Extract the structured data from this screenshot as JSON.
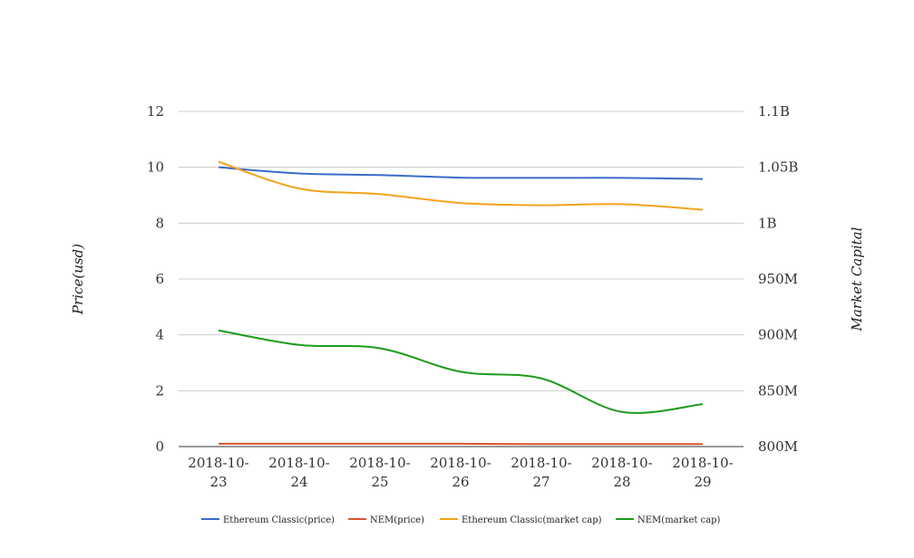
{
  "chart_data": {
    "type": "line",
    "categories": [
      "2018-10-23",
      "2018-10-24",
      "2018-10-25",
      "2018-10-26",
      "2018-10-27",
      "2018-10-28",
      "2018-10-29"
    ],
    "x_tick_lines": [
      [
        "2018-10-",
        "23"
      ],
      [
        "2018-10-",
        "24"
      ],
      [
        "2018-10-",
        "25"
      ],
      [
        "2018-10-",
        "26"
      ],
      [
        "2018-10-",
        "27"
      ],
      [
        "2018-10-",
        "28"
      ],
      [
        "2018-10-",
        "29"
      ]
    ],
    "ylabel": "Price(usd)",
    "y2label": "Market Capital",
    "ylim": [
      0,
      12
    ],
    "y2lim": [
      800000000,
      1100000000
    ],
    "yticks": [
      0,
      2,
      4,
      6,
      8,
      10,
      12
    ],
    "yticklabels": [
      "0",
      "2",
      "4",
      "6",
      "8",
      "10",
      "12"
    ],
    "y2ticks": [
      800000000,
      850000000,
      900000000,
      950000000,
      1000000000,
      1050000000,
      1100000000
    ],
    "y2ticklabels": [
      "800M",
      "850M",
      "900M",
      "950M",
      "1B",
      "1.05B",
      "1.1B"
    ],
    "grid": true,
    "legend_position": "bottom",
    "series": [
      {
        "name": "Ethereum Classic(price)",
        "axis": "left",
        "color": "#3a6bc9",
        "values": [
          10.0,
          9.78,
          9.72,
          9.63,
          9.62,
          9.62,
          9.58
        ]
      },
      {
        "name": "NEM(price)",
        "axis": "left",
        "color": "#d9532c",
        "values": [
          0.1,
          0.1,
          0.1,
          0.1,
          0.09,
          0.09,
          0.09
        ]
      },
      {
        "name": "Ethereum Classic(market cap)",
        "axis": "right",
        "color": "#f2a31b",
        "values": [
          1055000000,
          1031000000,
          1026000000,
          1018000000,
          1016000000,
          1017000000,
          1012000000
        ]
      },
      {
        "name": "NEM(market cap)",
        "axis": "right",
        "color": "#1e9a1e",
        "values": [
          904000000,
          891000000,
          888000000,
          867000000,
          861000000,
          831000000,
          838000000
        ]
      }
    ]
  }
}
